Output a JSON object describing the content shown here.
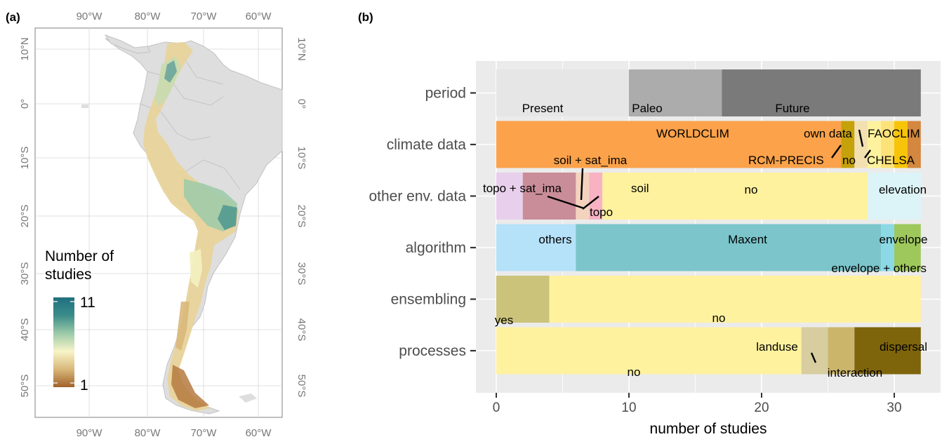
{
  "panel_a": {
    "label": "(a)",
    "lon_ticks": [
      "90°W",
      "80°W",
      "70°W",
      "60°W"
    ],
    "lat_ticks": [
      "10°N",
      "0°",
      "10°S",
      "20°S",
      "30°S",
      "40°S",
      "50°S"
    ],
    "legend": {
      "title_line1": "Number of",
      "title_line2": "studies",
      "max_label": "11",
      "min_label": "1",
      "gradient_colors": [
        "#a0622a",
        "#d9b87a",
        "#f8f4c8",
        "#9ccaa8",
        "#3a8c8a",
        "#1f6f7f"
      ]
    }
  },
  "panel_b": {
    "label": "(b)",
    "x_title": "number of studies",
    "chart_data": {
      "type": "bar",
      "orientation": "horizontal",
      "stacked": true,
      "categories": [
        "period",
        "climate data",
        "other env. data",
        "algorithm",
        "ensembling",
        "processes"
      ],
      "xlim": [
        0,
        32
      ],
      "x_ticks": [
        "0",
        "10",
        "20",
        "30"
      ],
      "x_tick_values": [
        0,
        10,
        20,
        30
      ],
      "grid": true,
      "bars": [
        {
          "category": "period",
          "segments": [
            {
              "label": "Present",
              "start": 0,
              "end": 10,
              "color": "#e6e6e6"
            },
            {
              "label": "Paleo",
              "start": 10,
              "end": 17,
              "color": "#acacac"
            },
            {
              "label": "Future",
              "start": 17,
              "end": 32,
              "color": "#7a7a7a"
            }
          ]
        },
        {
          "category": "climate data",
          "segments": [
            {
              "label": "WORLDCLIM",
              "start": 0,
              "end": 26,
              "color": "#fba24a"
            },
            {
              "label": "RCM-PRECIS",
              "start": 26,
              "end": 27,
              "color": "#c5a10a"
            },
            {
              "label": "own data",
              "start": 27,
              "end": 28,
              "color": "#f3e0b0"
            },
            {
              "label": "no",
              "start": 28,
              "end": 29,
              "color": "#fff29e"
            },
            {
              "label": "FAOCLIM",
              "start": 29,
              "end": 30,
              "color": "#fde27a"
            },
            {
              "label": "CHELSA",
              "start": 30,
              "end": 31,
              "color": "#f7c409"
            },
            {
              "label": "",
              "start": 31,
              "end": 32,
              "color": "#d3873f"
            }
          ]
        },
        {
          "category": "other env. data",
          "segments": [
            {
              "label": "",
              "start": 0,
              "end": 2,
              "color": "#e8cfec"
            },
            {
              "label": "topo + sat_ima",
              "start": 2,
              "end": 6,
              "color": "#c98d99"
            },
            {
              "label": "soil + sat_ima",
              "start": 6,
              "end": 7,
              "color": "#f3d3bd"
            },
            {
              "label": "topo",
              "start": 7,
              "end": 8,
              "color": "#f8b2c2"
            },
            {
              "label": "soil",
              "start": 8,
              "end": 8,
              "color": "#fdecad"
            },
            {
              "label": "no",
              "start": 8,
              "end": 28,
              "color": "#fff29e"
            },
            {
              "label": "elevation",
              "start": 28,
              "end": 32,
              "color": "#dcf4f8"
            }
          ]
        },
        {
          "category": "algorithm",
          "segments": [
            {
              "label": "others",
              "start": 0,
              "end": 6,
              "color": "#b5e1f9"
            },
            {
              "label": "Maxent",
              "start": 6,
              "end": 29,
              "color": "#7bc5cb"
            },
            {
              "label": "envelope + others",
              "start": 29,
              "end": 30,
              "color": "#8ad9e5"
            },
            {
              "label": "envelope",
              "start": 30,
              "end": 32,
              "color": "#9ec85c"
            }
          ]
        },
        {
          "category": "ensembling",
          "segments": [
            {
              "label": "yes",
              "start": 0,
              "end": 4,
              "color": "#cbc37a"
            },
            {
              "label": "no",
              "start": 4,
              "end": 32,
              "color": "#fff29e"
            }
          ]
        },
        {
          "category": "processes",
          "segments": [
            {
              "label": "no",
              "start": 0,
              "end": 23,
              "color": "#fff29e"
            },
            {
              "label": "landuse",
              "start": 23,
              "end": 25,
              "color": "#d7cd9f"
            },
            {
              "label": "interaction",
              "start": 25,
              "end": 27,
              "color": "#cbb56b"
            },
            {
              "label": "dispersal",
              "start": 27,
              "end": 32,
              "color": "#7e640b"
            }
          ]
        }
      ]
    }
  }
}
